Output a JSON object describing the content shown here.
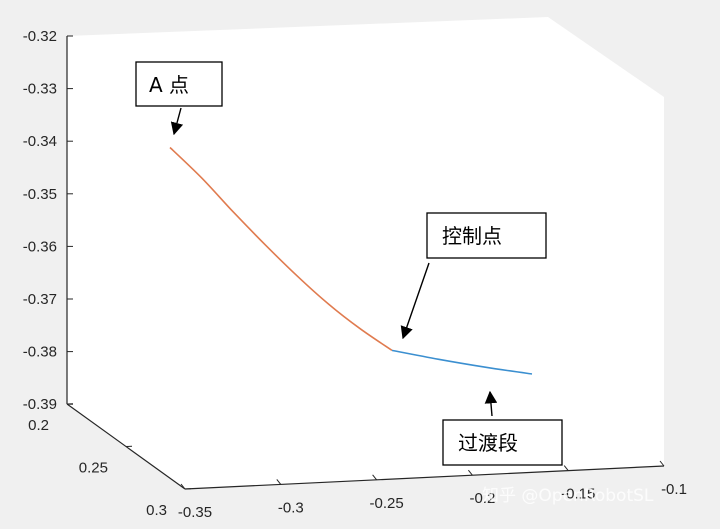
{
  "chart_data": {
    "type": "line",
    "title": "",
    "xlabel": "",
    "ylabel": "",
    "zlabel": "",
    "z_ticks": [
      "-0.32",
      "-0.33",
      "-0.34",
      "-0.35",
      "-0.36",
      "-0.37",
      "-0.38",
      "-0.39"
    ],
    "y_ticks": [
      "0.2",
      "0.25",
      "0.3"
    ],
    "x_ticks": [
      "-0.35",
      "-0.3",
      "-0.25",
      "-0.2",
      "-0.15",
      "-0.1"
    ],
    "zlim": [
      -0.39,
      -0.32
    ],
    "grid": false,
    "series": [
      {
        "color": "#e07b4f",
        "z": [
          -0.3412,
          -0.347,
          -0.3535,
          -0.3597,
          -0.3656,
          -0.371,
          -0.3757,
          -0.3798
        ]
      },
      {
        "color": "#3b8fd0",
        "z": [
          -0.3798,
          -0.3815,
          -0.383,
          -0.3843
        ]
      }
    ],
    "annotations": [
      {
        "text": "A 点"
      },
      {
        "text": "控制点"
      },
      {
        "text": "过渡段"
      }
    ]
  },
  "watermark": "知乎 @OpenRobotSL"
}
